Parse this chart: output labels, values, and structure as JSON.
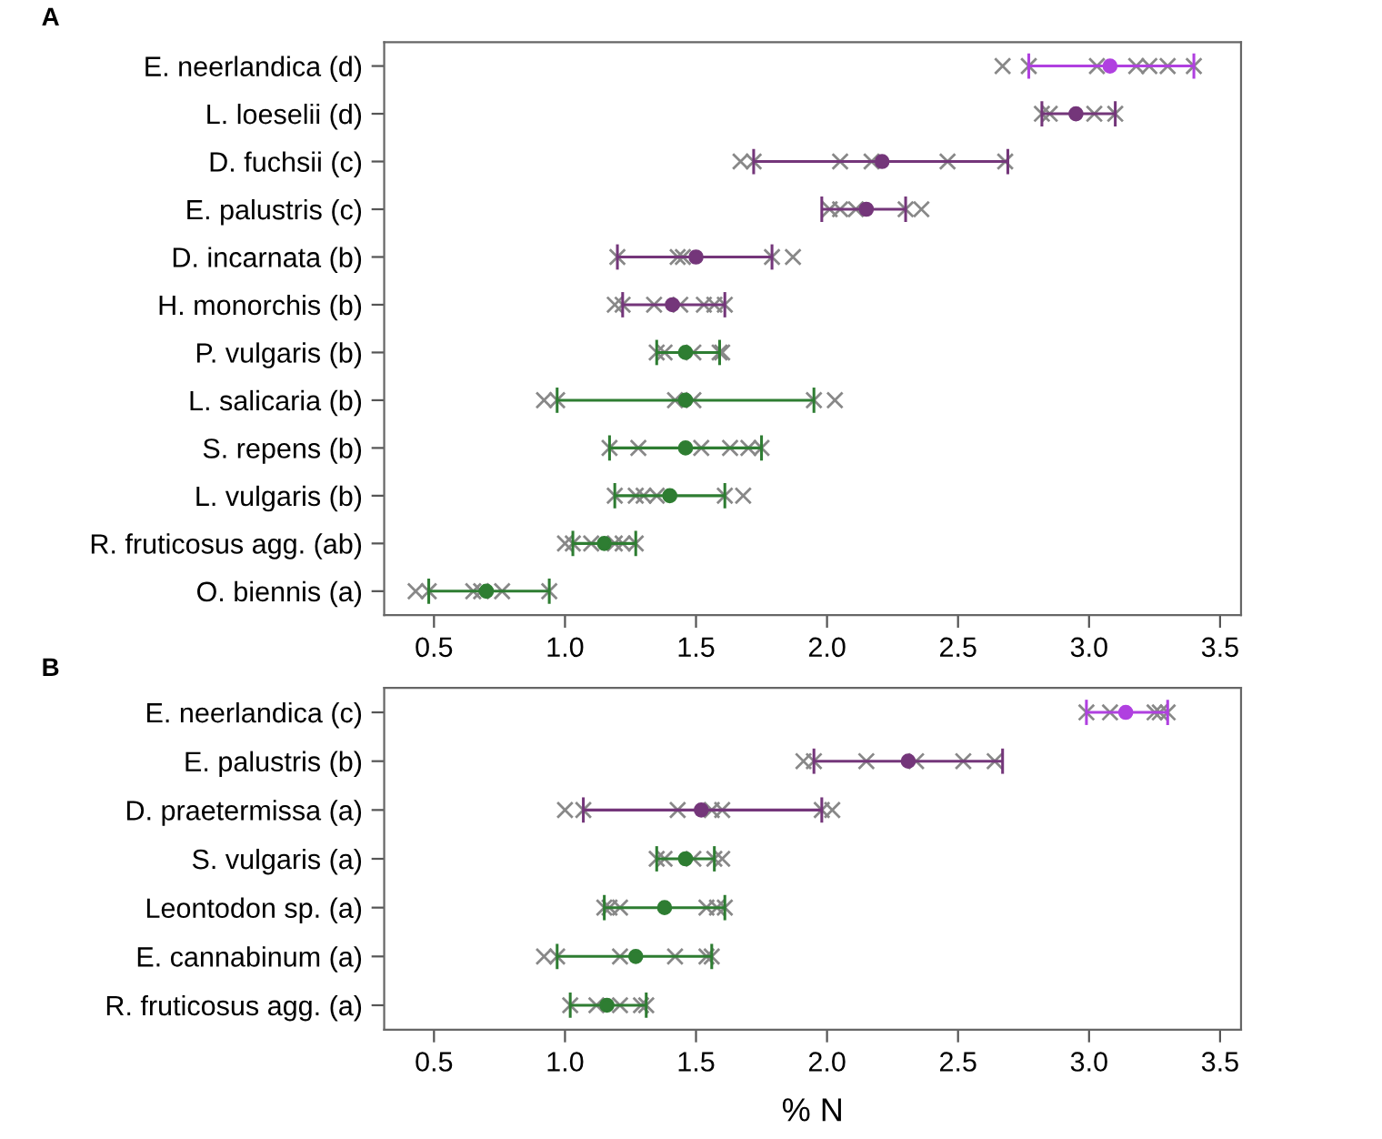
{
  "chart_data": [
    {
      "type": "scatter",
      "title": "A",
      "orientation": "horizontal",
      "legend": false,
      "grid": false,
      "categories": [
        "E. neerlandica (d)",
        "L. loeselii (d)",
        "D. fuchsii (c)",
        "E. palustris (c)",
        "D. incarnata (b)",
        "H. monorchis (b)",
        "P. vulgaris (b)",
        "L. salicaria (b)",
        "S. repens (b)",
        "L. vulgaris (b)",
        "R. fruticosus agg. (ab)",
        "O. biennis (a)"
      ],
      "xlim": [
        0.31,
        3.58
      ],
      "xticks": [
        {
          "value": 0.5,
          "label": "0.5"
        },
        {
          "value": 1,
          "label": "1.0"
        },
        {
          "value": 1.5,
          "label": "1.5"
        },
        {
          "value": 2,
          "label": "2.0"
        },
        {
          "value": 2.5,
          "label": "2.5"
        },
        {
          "value": 3,
          "label": "3.0"
        },
        {
          "value": 3.5,
          "label": "3.5"
        }
      ],
      "series": [
        {
          "marker": "cross",
          "color": "#888888",
          "x": [
            "E. neerlandica (d)",
            "E. neerlandica (d)",
            "E. neerlandica (d)",
            "E. neerlandica (d)",
            "E. neerlandica (d)",
            "E. neerlandica (d)",
            "E. neerlandica (d)",
            "L. loeselii (d)",
            "L. loeselii (d)",
            "L. loeselii (d)",
            "L. loeselii (d)",
            "D. fuchsii (c)",
            "D. fuchsii (c)",
            "D. fuchsii (c)",
            "D. fuchsii (c)",
            "D. fuchsii (c)",
            "D. fuchsii (c)",
            "E. palustris (c)",
            "E. palustris (c)",
            "E. palustris (c)",
            "E. palustris (c)",
            "E. palustris (c)",
            "D. incarnata (b)",
            "D. incarnata (b)",
            "D. incarnata (b)",
            "D. incarnata (b)",
            "D. incarnata (b)",
            "H. monorchis (b)",
            "H. monorchis (b)",
            "H. monorchis (b)",
            "H. monorchis (b)",
            "H. monorchis (b)",
            "H. monorchis (b)",
            "H. monorchis (b)",
            "P. vulgaris (b)",
            "P. vulgaris (b)",
            "P. vulgaris (b)",
            "P. vulgaris (b)",
            "P. vulgaris (b)",
            "L. salicaria (b)",
            "L. salicaria (b)",
            "L. salicaria (b)",
            "L. salicaria (b)",
            "L. salicaria (b)",
            "L. salicaria (b)",
            "S. repens (b)",
            "S. repens (b)",
            "S. repens (b)",
            "S. repens (b)",
            "S. repens (b)",
            "S. repens (b)",
            "L. vulgaris (b)",
            "L. vulgaris (b)",
            "L. vulgaris (b)",
            "L. vulgaris (b)",
            "L. vulgaris (b)",
            "L. vulgaris (b)",
            "R. fruticosus agg. (ab)",
            "R. fruticosus agg. (ab)",
            "R. fruticosus agg. (ab)",
            "R. fruticosus agg. (ab)",
            "R. fruticosus agg. (ab)",
            "R. fruticosus agg. (ab)",
            "O. biennis (a)",
            "O. biennis (a)",
            "O. biennis (a)",
            "O. biennis (a)",
            "O. biennis (a)",
            "O. biennis (a)"
          ],
          "values": [
            2.67,
            2.77,
            3.03,
            3.18,
            3.23,
            3.3,
            3.4,
            2.82,
            2.85,
            3.02,
            3.1,
            1.67,
            1.72,
            2.05,
            2.17,
            2.46,
            2.68,
            2.01,
            2.05,
            2.11,
            2.3,
            2.36,
            1.2,
            1.43,
            1.45,
            1.79,
            1.87,
            1.19,
            1.22,
            1.34,
            1.44,
            1.53,
            1.57,
            1.61,
            1.35,
            1.38,
            1.49,
            1.59,
            1.6,
            0.92,
            0.97,
            1.42,
            1.49,
            1.95,
            2.03,
            1.17,
            1.28,
            1.52,
            1.63,
            1.7,
            1.75,
            1.19,
            1.27,
            1.3,
            1.35,
            1.61,
            1.68,
            1.0,
            1.03,
            1.1,
            1.19,
            1.22,
            1.27,
            0.43,
            0.48,
            0.65,
            0.68,
            0.76,
            0.94
          ]
        },
        {
          "marker": "circle",
          "color": "#b040e0",
          "values": [
            3.08,
            null,
            null,
            null,
            null,
            null,
            null,
            null,
            null,
            null,
            null,
            null
          ],
          "errors": [
            [
              2.77,
              3.4
            ],
            null,
            null,
            null,
            null,
            null,
            null,
            null,
            null,
            null,
            null,
            null
          ]
        },
        {
          "marker": "circle",
          "color": "#74367a",
          "values": [
            null,
            2.95,
            2.21,
            2.15,
            1.5,
            1.41,
            null,
            null,
            null,
            null,
            null,
            null
          ],
          "errors": [
            null,
            [
              2.82,
              3.1
            ],
            [
              1.72,
              2.69
            ],
            [
              1.98,
              2.3
            ],
            [
              1.2,
              1.79
            ],
            [
              1.22,
              1.61
            ],
            null,
            null,
            null,
            null,
            null,
            null
          ]
        },
        {
          "marker": "circle",
          "color": "#2e7d32",
          "values": [
            null,
            null,
            null,
            null,
            null,
            null,
            1.46,
            1.46,
            1.46,
            1.4,
            1.15,
            0.7
          ],
          "errors": [
            null,
            null,
            null,
            null,
            null,
            null,
            [
              1.35,
              1.59
            ],
            [
              0.97,
              1.95
            ],
            [
              1.17,
              1.75
            ],
            [
              1.19,
              1.61
            ],
            [
              1.03,
              1.27
            ],
            [
              0.48,
              0.94
            ]
          ]
        }
      ]
    },
    {
      "type": "scatter",
      "title": "B",
      "orientation": "horizontal",
      "legend": false,
      "grid": false,
      "xlabel": "% N",
      "categories": [
        "E. neerlandica (c)",
        "E. palustris (b)",
        "D. praetermissa (a)",
        "S. vulgaris (a)",
        "Leontodon sp. (a)",
        "E. cannabinum (a)",
        "R. fruticosus agg. (a)"
      ],
      "xlim": [
        0.31,
        3.58
      ],
      "xticks": [
        {
          "value": 0.5,
          "label": "0.5"
        },
        {
          "value": 1,
          "label": "1.0"
        },
        {
          "value": 1.5,
          "label": "1.5"
        },
        {
          "value": 2,
          "label": "2.0"
        },
        {
          "value": 2.5,
          "label": "2.5"
        },
        {
          "value": 3,
          "label": "3.0"
        },
        {
          "value": 3.5,
          "label": "3.5"
        }
      ],
      "series": [
        {
          "marker": "cross",
          "color": "#888888",
          "x": [
            "E. neerlandica (c)",
            "E. neerlandica (c)",
            "E. neerlandica (c)",
            "E. neerlandica (c)",
            "E. neerlandica (c)",
            "E. palustris (b)",
            "E. palustris (b)",
            "E. palustris (b)",
            "E. palustris (b)",
            "E. palustris (b)",
            "E. palustris (b)",
            "D. praetermissa (a)",
            "D. praetermissa (a)",
            "D. praetermissa (a)",
            "D. praetermissa (a)",
            "D. praetermissa (a)",
            "D. praetermissa (a)",
            "D. praetermissa (a)",
            "S. vulgaris (a)",
            "S. vulgaris (a)",
            "S. vulgaris (a)",
            "S. vulgaris (a)",
            "S. vulgaris (a)",
            "Leontodon sp. (a)",
            "Leontodon sp. (a)",
            "Leontodon sp. (a)",
            "Leontodon sp. (a)",
            "Leontodon sp. (a)",
            "Leontodon sp. (a)",
            "E. cannabinum (a)",
            "E. cannabinum (a)",
            "E. cannabinum (a)",
            "E. cannabinum (a)",
            "E. cannabinum (a)",
            "E. cannabinum (a)",
            "R. fruticosus agg. (a)",
            "R. fruticosus agg. (a)",
            "R. fruticosus agg. (a)",
            "R. fruticosus agg. (a)",
            "R. fruticosus agg. (a)"
          ],
          "values": [
            2.99,
            3.08,
            3.25,
            3.27,
            3.3,
            1.91,
            1.95,
            2.15,
            2.34,
            2.52,
            2.64,
            1.0,
            1.07,
            1.43,
            1.56,
            1.6,
            1.98,
            2.02,
            1.35,
            1.38,
            1.49,
            1.57,
            1.6,
            1.15,
            1.17,
            1.21,
            1.54,
            1.58,
            1.61,
            0.92,
            0.97,
            1.21,
            1.42,
            1.54,
            1.56,
            1.02,
            1.12,
            1.21,
            1.29,
            1.31
          ]
        },
        {
          "marker": "circle",
          "color": "#b040e0",
          "values": [
            3.14,
            null,
            null,
            null,
            null,
            null,
            null
          ],
          "errors": [
            [
              2.99,
              3.3
            ],
            null,
            null,
            null,
            null,
            null,
            null
          ]
        },
        {
          "marker": "circle",
          "color": "#74367a",
          "values": [
            null,
            2.31,
            1.52,
            null,
            null,
            null,
            null
          ],
          "errors": [
            null,
            [
              1.95,
              2.67
            ],
            [
              1.07,
              1.98
            ],
            null,
            null,
            null,
            null
          ]
        },
        {
          "marker": "circle",
          "color": "#2e7d32",
          "values": [
            null,
            null,
            null,
            1.46,
            1.38,
            1.27,
            1.16
          ],
          "errors": [
            null,
            null,
            null,
            [
              1.35,
              1.57
            ],
            [
              1.15,
              1.61
            ],
            [
              0.97,
              1.56
            ],
            [
              1.02,
              1.31
            ]
          ]
        }
      ]
    }
  ]
}
